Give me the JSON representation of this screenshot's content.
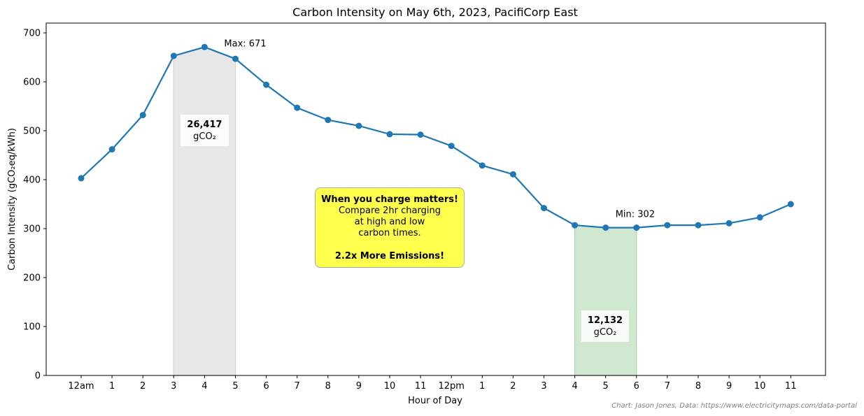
{
  "chart_data": {
    "type": "line",
    "title": "Carbon Intensity on May 6th, 2023, PacifiCorp East",
    "xlabel": "Hour of Day",
    "ylabel": "Carbon Intensity (gCO₂eq/kWh)",
    "ylim": [
      0,
      720
    ],
    "yticks": [
      0,
      100,
      200,
      300,
      400,
      500,
      600,
      700
    ],
    "categories": [
      "12am",
      "1",
      "2",
      "3",
      "4",
      "5",
      "6",
      "7",
      "8",
      "9",
      "10",
      "11",
      "12pm",
      "1",
      "2",
      "3",
      "4",
      "5",
      "6",
      "7",
      "8",
      "9",
      "10",
      "11"
    ],
    "values": [
      403,
      462,
      532,
      653,
      671,
      647,
      594,
      547,
      522,
      510,
      493,
      492,
      469,
      429,
      411,
      342,
      307,
      302,
      302,
      307,
      307,
      311,
      323,
      350
    ],
    "series_color": "#1f77b4",
    "grid": false,
    "shaded_regions": [
      {
        "start_hour": 3,
        "end_hour": 5,
        "color": "#d3d3d3",
        "total_value": "26,417",
        "unit": "gCO₂"
      },
      {
        "start_hour": 16,
        "end_hour": 18,
        "color": "#a9d3a9",
        "total_value": "12,132",
        "unit": "gCO₂"
      }
    ],
    "annotations": {
      "max": {
        "text": "Max: 671",
        "hour": 4,
        "value": 671
      },
      "min": {
        "text": "Min: 302",
        "hour": 17,
        "value": 302
      }
    },
    "callout": {
      "heading": "When you charge matters!",
      "line1": "Compare 2hr charging",
      "line2": "at high and low",
      "line3": "carbon times.",
      "result": "2.2x More Emissions!",
      "color": "#ffff4d"
    },
    "credit": "Chart: Jason Jones, Data: https://www.electricitymaps.com/data-portal"
  }
}
